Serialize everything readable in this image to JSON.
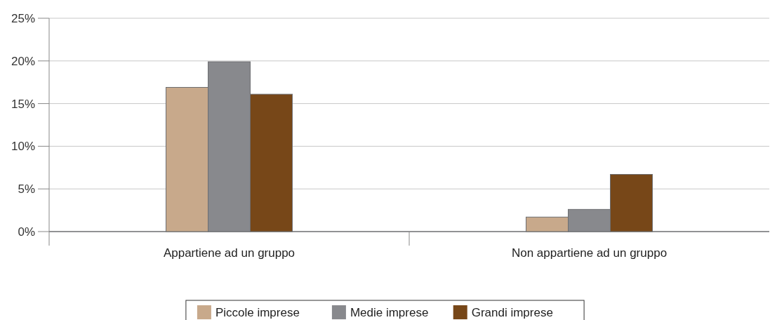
{
  "chart_data": {
    "type": "bar",
    "categories": [
      "Appartiene ad un gruppo",
      "Non appartiene ad un gruppo"
    ],
    "series": [
      {
        "name": "Piccole imprese",
        "color": "#c8a98b",
        "values": [
          16.9,
          1.7
        ]
      },
      {
        "name": "Medie imprese",
        "color": "#88898d",
        "values": [
          19.9,
          2.6
        ]
      },
      {
        "name": "Grandi imprese",
        "color": "#774718",
        "values": [
          16.1,
          6.7
        ]
      }
    ],
    "ylim": [
      0,
      25
    ],
    "yticks": [
      {
        "value": 0,
        "label": "0%"
      },
      {
        "value": 5,
        "label": "5%"
      },
      {
        "value": 10,
        "label": "10%"
      },
      {
        "value": 15,
        "label": "15%"
      },
      {
        "value": 20,
        "label": "20%"
      },
      {
        "value": 25,
        "label": "25%"
      }
    ],
    "grid": "y",
    "legend": "bottom"
  }
}
